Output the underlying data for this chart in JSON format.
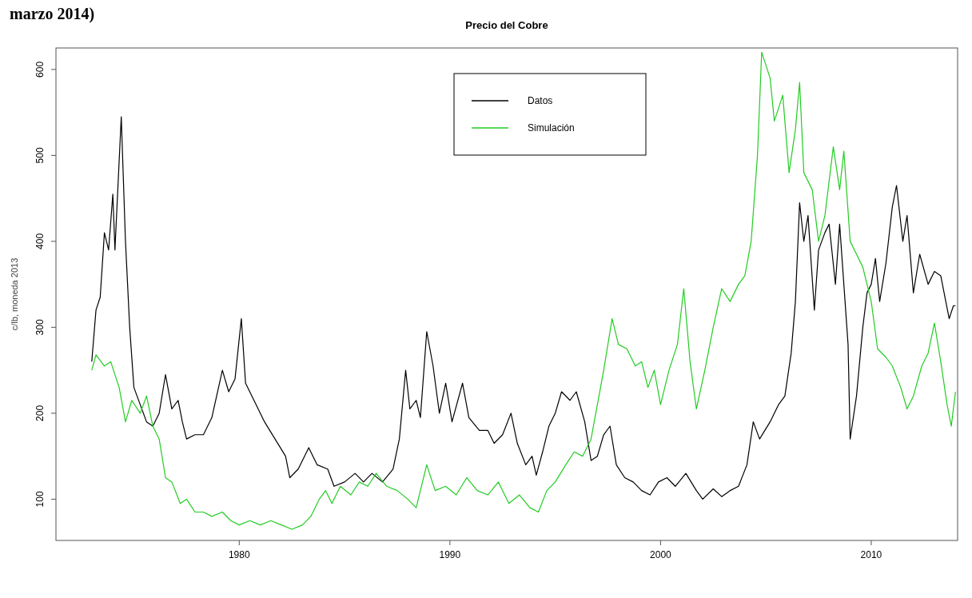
{
  "chart_data": {
    "type": "line",
    "title": "Precio del Cobre",
    "ylabel": "c/lb, moneda 2013",
    "annotations": [
      "marzo 2014)"
    ],
    "xlim": [
      1971.3,
      2014.1
    ],
    "xticks": [
      1980,
      1990,
      2000,
      2010
    ],
    "ylim": [
      52,
      625
    ],
    "yticks": [
      100,
      200,
      300,
      400,
      500,
      600
    ],
    "grid": false,
    "legend": "top",
    "line_style": "solid",
    "marker": "none",
    "series": [
      {
        "name": "Datos",
        "color": "#000000",
        "x": [
          1973.0,
          1973.2,
          1973.4,
          1973.6,
          1973.8,
          1974.0,
          1974.1,
          1974.4,
          1974.6,
          1974.8,
          1975.0,
          1975.3,
          1975.6,
          1975.9,
          1976.2,
          1976.5,
          1976.8,
          1977.1,
          1977.3,
          1977.5,
          1977.9,
          1978.3,
          1978.7,
          1979.2,
          1979.5,
          1979.8,
          1980.1,
          1980.3,
          1980.7,
          1981.2,
          1981.7,
          1982.2,
          1982.4,
          1982.8,
          1983.3,
          1983.7,
          1984.2,
          1984.5,
          1985.0,
          1985.5,
          1985.9,
          1986.3,
          1986.8,
          1987.3,
          1987.6,
          1987.9,
          1988.1,
          1988.4,
          1988.6,
          1988.9,
          1989.2,
          1989.5,
          1989.8,
          1990.1,
          1990.6,
          1990.9,
          1991.4,
          1991.8,
          1992.1,
          1992.5,
          1992.9,
          1993.2,
          1993.6,
          1993.9,
          1994.1,
          1994.4,
          1994.7,
          1995.0,
          1995.3,
          1995.7,
          1996.0,
          1996.4,
          1996.7,
          1997.0,
          1997.3,
          1997.6,
          1997.9,
          1998.3,
          1998.7,
          1999.1,
          1999.5,
          1999.9,
          2000.3,
          2000.7,
          2001.2,
          2001.7,
          2002.0,
          2002.5,
          2002.9,
          2003.3,
          2003.7,
          2004.1,
          2004.4,
          2004.7,
          2005.2,
          2005.6,
          2005.9,
          2006.2,
          2006.4,
          2006.6,
          2006.8,
          2007.0,
          2007.3,
          2007.5,
          2007.8,
          2008.0,
          2008.3,
          2008.5,
          2008.9,
          2009.0,
          2009.3,
          2009.6,
          2009.8,
          2010.0,
          2010.2,
          2010.4,
          2010.7,
          2011.0,
          2011.2,
          2011.5,
          2011.7,
          2012.0,
          2012.3,
          2012.7,
          2013.0,
          2013.3,
          2013.5,
          2013.7,
          2013.9,
          2014.0
        ],
        "values": [
          260,
          320,
          335,
          410,
          390,
          455,
          390,
          545,
          400,
          300,
          230,
          210,
          190,
          185,
          200,
          245,
          205,
          215,
          190,
          170,
          175,
          175,
          195,
          250,
          225,
          240,
          310,
          235,
          215,
          190,
          170,
          150,
          125,
          135,
          160,
          140,
          135,
          115,
          120,
          130,
          120,
          130,
          120,
          135,
          170,
          250,
          205,
          215,
          195,
          295,
          255,
          200,
          235,
          190,
          235,
          195,
          180,
          180,
          165,
          175,
          200,
          165,
          140,
          150,
          128,
          155,
          185,
          200,
          225,
          215,
          225,
          190,
          145,
          150,
          175,
          185,
          140,
          125,
          120,
          110,
          105,
          120,
          125,
          115,
          130,
          110,
          100,
          112,
          103,
          110,
          115,
          140,
          190,
          170,
          190,
          210,
          220,
          270,
          330,
          445,
          400,
          430,
          320,
          390,
          410,
          420,
          350,
          420,
          280,
          170,
          220,
          300,
          340,
          350,
          380,
          330,
          375,
          440,
          465,
          400,
          430,
          340,
          385,
          350,
          365,
          360,
          335,
          310,
          325,
          325
        ]
      },
      {
        "name": "Simulación",
        "color": "#22cc22",
        "x": [
          1973.0,
          1973.2,
          1973.6,
          1973.9,
          1974.3,
          1974.6,
          1974.9,
          1975.3,
          1975.6,
          1975.9,
          1976.2,
          1976.5,
          1976.8,
          1977.2,
          1977.5,
          1977.9,
          1978.3,
          1978.7,
          1979.2,
          1979.6,
          1980.0,
          1980.5,
          1981.0,
          1981.5,
          1982.0,
          1982.5,
          1983.0,
          1983.4,
          1983.8,
          1984.1,
          1984.4,
          1984.8,
          1985.3,
          1985.7,
          1986.1,
          1986.5,
          1987.0,
          1987.5,
          1988.0,
          1988.4,
          1988.9,
          1989.3,
          1989.8,
          1990.3,
          1990.8,
          1991.3,
          1991.8,
          1992.3,
          1992.8,
          1993.3,
          1993.8,
          1994.2,
          1994.6,
          1995.0,
          1995.5,
          1995.9,
          1996.3,
          1996.7,
          1997.0,
          1997.3,
          1997.7,
          1998.0,
          1998.4,
          1998.8,
          1999.1,
          1999.4,
          1999.7,
          2000.0,
          2000.4,
          2000.8,
          2001.1,
          2001.4,
          2001.7,
          2002.1,
          2002.5,
          2002.9,
          2003.3,
          2003.7,
          2004.0,
          2004.3,
          2004.6,
          2004.8,
          2005.2,
          2005.4,
          2005.8,
          2006.1,
          2006.4,
          2006.6,
          2006.8,
          2007.2,
          2007.5,
          2007.8,
          2008.2,
          2008.5,
          2008.7,
          2009.0,
          2009.3,
          2009.6,
          2010.0,
          2010.3,
          2010.7,
          2011.0,
          2011.4,
          2011.7,
          2012.0,
          2012.4,
          2012.7,
          2013.0,
          2013.3,
          2013.6,
          2013.8,
          2014.0
        ],
        "values": [
          250,
          268,
          255,
          260,
          230,
          190,
          215,
          200,
          220,
          185,
          170,
          125,
          120,
          95,
          100,
          85,
          85,
          80,
          85,
          75,
          70,
          75,
          70,
          75,
          70,
          65,
          70,
          80,
          100,
          110,
          95,
          115,
          105,
          120,
          115,
          130,
          115,
          110,
          100,
          90,
          140,
          110,
          115,
          105,
          125,
          110,
          105,
          120,
          95,
          105,
          90,
          85,
          110,
          120,
          140,
          155,
          150,
          170,
          210,
          250,
          310,
          280,
          275,
          255,
          260,
          230,
          250,
          210,
          250,
          280,
          345,
          260,
          205,
          250,
          300,
          345,
          330,
          350,
          360,
          400,
          500,
          620,
          590,
          540,
          570,
          480,
          530,
          585,
          480,
          460,
          400,
          430,
          510,
          460,
          505,
          400,
          385,
          370,
          330,
          275,
          265,
          255,
          230,
          205,
          220,
          255,
          270,
          305,
          260,
          210,
          185,
          225
        ]
      }
    ]
  }
}
